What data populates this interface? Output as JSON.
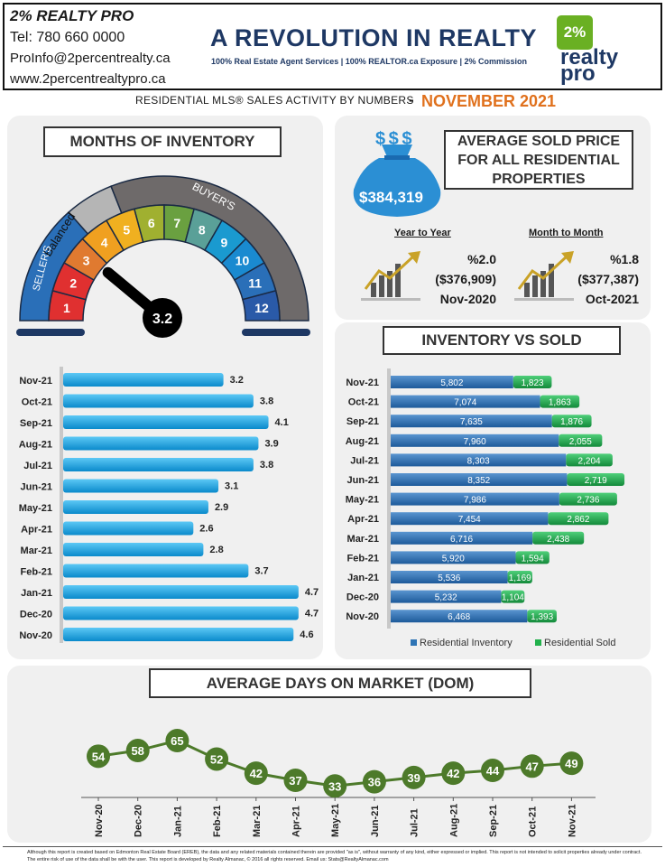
{
  "header": {
    "brand": "2% REALTY PRO",
    "phone": "Tel: 780 660 0000",
    "email": "ProInfo@2percentrealty.ca",
    "website": "www.2percentrealtypro.ca",
    "headline": "A REVOLUTION IN REALTY",
    "tagline": "100% Real Estate Agent Services | 100% REALTOR.ca Exposure | 2% Commission",
    "logo_tile": "2%",
    "logo_word1": "realty",
    "logo_word2": "pro"
  },
  "subtitle": {
    "text": "RESIDENTIAL MLS® SALES ACTIVITY BY NUMBERS",
    "dash": "-",
    "month": "NOVEMBER 2021"
  },
  "colors": {
    "accent_orange": "#e0711d",
    "navy": "#1e3864",
    "bar_blue": "#1aa3e0",
    "inventory_blue": "#2e74b5",
    "sold_green": "#22b14c",
    "line_green": "#4d7a2a"
  },
  "months_of_inventory": {
    "title": "MONTHS OF INVENTORY",
    "gauge": {
      "value": 3.2,
      "value_label": "3.2",
      "labels": [
        "Balanced",
        "BUYER'S",
        "SELLER'S"
      ],
      "segments": [
        "1",
        "2",
        "3",
        "4",
        "5",
        "6",
        "7",
        "8",
        "9",
        "10",
        "11",
        "12"
      ],
      "segment_colors": [
        "#e03030",
        "#e03030",
        "#e07a30",
        "#f0a020",
        "#f0b020",
        "#a0b030",
        "#6aa040",
        "#5aa098",
        "#1a9ad0",
        "#1a8ad0",
        "#2a6fb8",
        "#2a5aa8"
      ]
    }
  },
  "average_price": {
    "title_line1": "AVERAGE  SOLD PRICE",
    "title_line2": "FOR ALL RESIDENTIAL",
    "title_line3": "PROPERTIES",
    "value": "$384,319",
    "bag_symbol": "$ $ $",
    "yoy": {
      "heading": "Year to Year",
      "pct": "%2.0",
      "prev": "($376,909)",
      "period": "Nov-2020"
    },
    "mom": {
      "heading": "Month to Month",
      "pct": "%1.8",
      "prev": "($377,387)",
      "period": "Oct-2021"
    }
  },
  "inventory_vs_sold_title": "INVENTORY VS SOLD",
  "dom_title": "AVERAGE DAYS ON MARKET (DOM)",
  "footer": "Although this report is created based on Edmonton Real Estate Board (EREB), the data and any related materials contained therein are provided \"as is\", without warranty of any kind, either expressed or implied. This report is not intended to solicit properties already under contract. The entire risk of use of the data shall be with the user. This report is developed by Realty Almanac, © 2016 all rights reserved. Email us: Stats@RealtyAlmanac.com",
  "chart_data": [
    {
      "type": "bar",
      "orientation": "horizontal",
      "categories": [
        "Nov-21",
        "Oct-21",
        "Sep-21",
        "Aug-21",
        "Jul-21",
        "Jun-21",
        "May-21",
        "Apr-21",
        "Mar-21",
        "Feb-21",
        "Jan-21",
        "Dec-20",
        "Nov-20"
      ],
      "values": [
        3.2,
        3.8,
        4.1,
        3.9,
        3.8,
        3.1,
        2.9,
        2.6,
        2.8,
        3.7,
        4.7,
        4.7,
        4.6
      ],
      "data_labels": [
        "3.2",
        "3.8",
        "4.1",
        "3.9",
        "3.8",
        "3.1",
        "2.9",
        "2.6",
        "2.8",
        "3.7",
        "4.7",
        "4.7",
        "4.6"
      ],
      "xlim": [
        0,
        5
      ]
    },
    {
      "type": "bar",
      "orientation": "horizontal",
      "stacked": true,
      "categories": [
        "Nov-21",
        "Oct-21",
        "Sep-21",
        "Aug-21",
        "Jul-21",
        "Jun-21",
        "May-21",
        "Apr-21",
        "Mar-21",
        "Feb-21",
        "Jan-21",
        "Dec-20",
        "Nov-20"
      ],
      "series": [
        {
          "name": "Residential Inventory",
          "values": [
            5802,
            7074,
            7635,
            7960,
            8303,
            8352,
            7986,
            7454,
            6716,
            5920,
            5536,
            5232,
            6468
          ],
          "labels": [
            "5,802",
            "7,074",
            "7,635",
            "7,960",
            "8,303",
            "8,352",
            "7,986",
            "7,454",
            "6,716",
            "5,920",
            "5,536",
            "5,232",
            "6,468"
          ]
        },
        {
          "name": "Residential Sold",
          "values": [
            1823,
            1863,
            1876,
            2055,
            2204,
            2719,
            2736,
            2862,
            2438,
            1594,
            1169,
            1104,
            1393
          ],
          "labels": [
            "1,823",
            "1,863",
            "1,876",
            "2,055",
            "2,204",
            "2,719",
            "2,736",
            "2,862",
            "2,438",
            "1,594",
            "1,169",
            "1,104",
            "1,393"
          ]
        }
      ],
      "xlim": [
        0,
        11500
      ],
      "legend": "bottom"
    },
    {
      "type": "line",
      "categories": [
        "Nov-20",
        "Dec-20",
        "Jan-21",
        "Feb-21",
        "Mar-21",
        "Apr-21",
        "May-21",
        "Jun-21",
        "Jul-21",
        "Aug-21",
        "Sep-21",
        "Oct-21",
        "Nov-21"
      ],
      "values": [
        54,
        58,
        65,
        52,
        42,
        37,
        33,
        36,
        39,
        42,
        44,
        47,
        49
      ],
      "data_labels": [
        "54",
        "58",
        "65",
        "52",
        "42",
        "37",
        "33",
        "36",
        "39",
        "42",
        "44",
        "47",
        "49"
      ],
      "ylim": [
        25,
        70
      ]
    }
  ]
}
